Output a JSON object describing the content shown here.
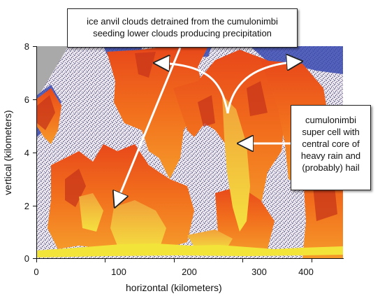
{
  "callouts": {
    "top_line1": "ice anvil clouds detrained from the cumulonimbi",
    "top_line2": "seeding lower clouds producing precipitation",
    "right_line1": "cumulonimbi",
    "right_line2": "super cell with",
    "right_line3": "central core of",
    "right_line4": "heavy rain and",
    "right_line5": "(probably) hail"
  },
  "axes": {
    "x_title": "horizontal (kilometers)",
    "y_title": "vertical (kilometers)",
    "x_ticks": [
      "0",
      "100",
      "200",
      "300",
      "400"
    ],
    "y_ticks": [
      "0",
      "2",
      "4",
      "6",
      "8"
    ]
  },
  "colors": {
    "echo_strong": "#f5d63c",
    "echo_medium": "#f06a18",
    "echo_weak": "#c8351a",
    "echo_edge": "#3a4ab0",
    "background_noise": "#c9c4cf",
    "ground_band": "#f3e43a",
    "missing_data": "#a9a9a9"
  }
}
